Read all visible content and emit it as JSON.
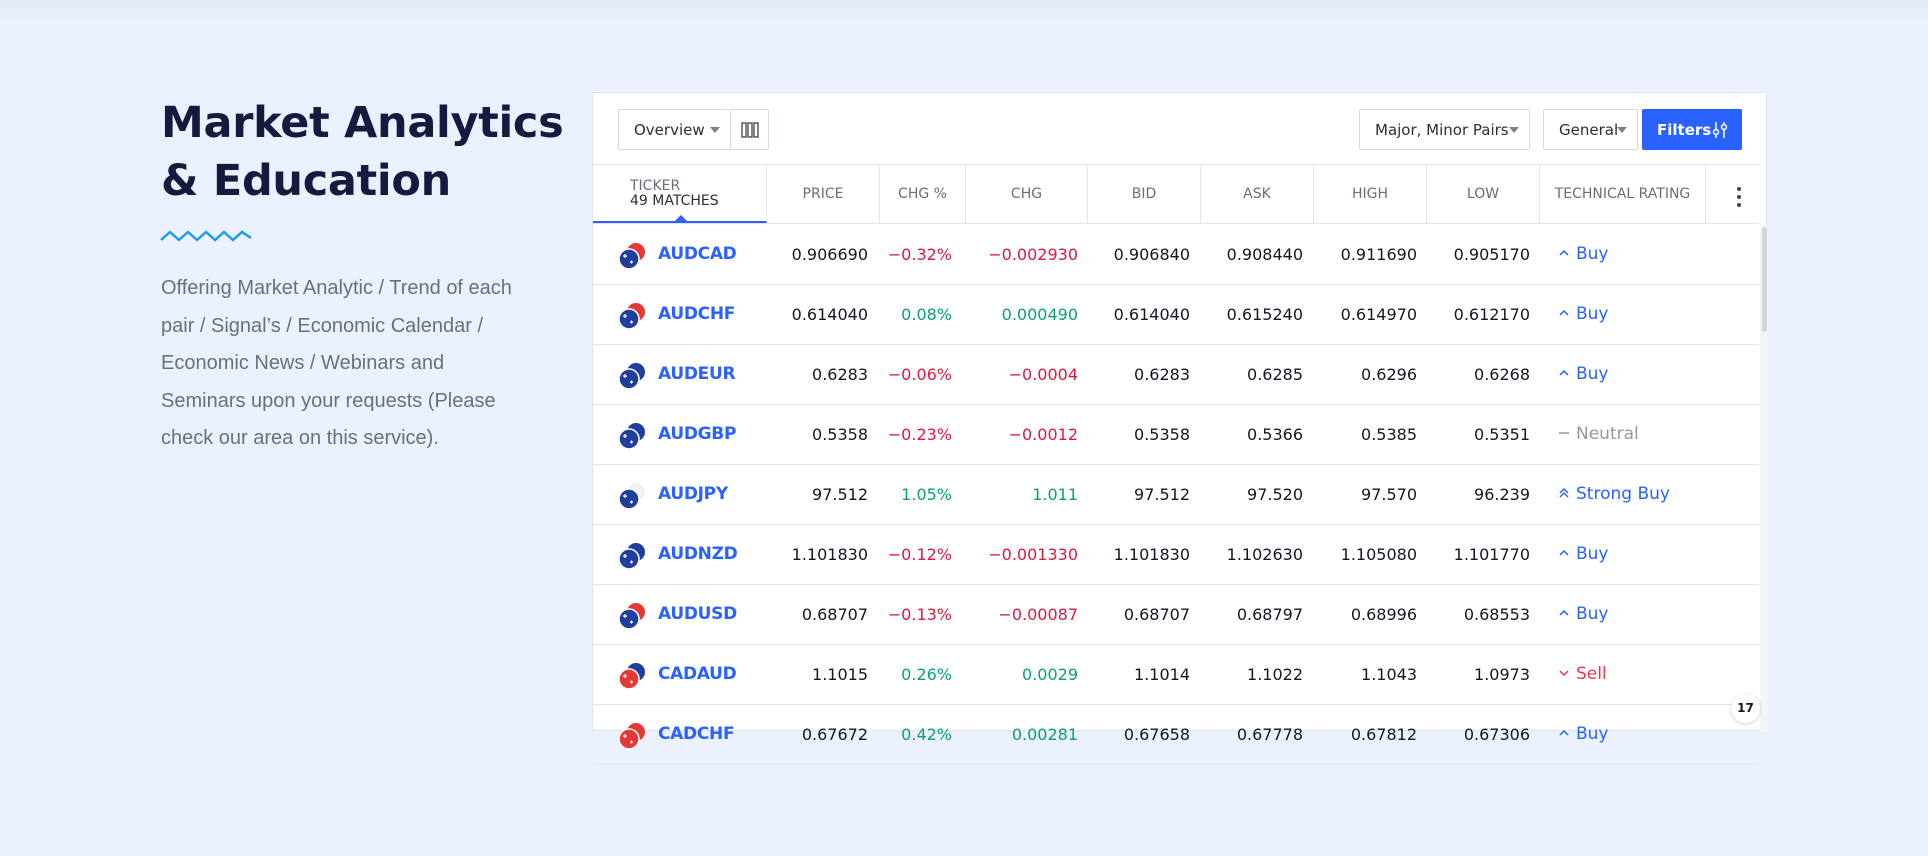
{
  "intro": {
    "title_line1": "Market Analytics",
    "title_line2": "& Education",
    "description": "Offering Market Analytic / Trend of each pair / Signal’s / Economic Calendar / Economic News / Webinars and Seminars upon your requests (Please check our area on this service)."
  },
  "toolbar": {
    "view_label": "Overview",
    "pairs_label": "Major, Minor Pairs",
    "category_label": "General",
    "filters_label": "Filters"
  },
  "columns": {
    "ticker": "TICKER",
    "matches": "49 MATCHES",
    "price": "PRICE",
    "chg_pct": "CHG %",
    "chg": "CHG",
    "bid": "BID",
    "ask": "ASK",
    "high": "HIGH",
    "low": "LOW",
    "rating": "TECHNICAL RATING"
  },
  "rows": [
    {
      "symbol": "AUDCAD",
      "flag_colors": [
        "#1f3f9b",
        "#e53935"
      ],
      "price": "0.906690",
      "chg_pct": "−0.32%",
      "chg": "−0.002930",
      "dir": "neg",
      "bid": "0.906840",
      "ask": "0.908440",
      "high": "0.911690",
      "low": "0.905170",
      "rating": "Buy",
      "rating_kind": "buy"
    },
    {
      "symbol": "AUDCHF",
      "flag_colors": [
        "#1f3f9b",
        "#e53935"
      ],
      "price": "0.614040",
      "chg_pct": "0.08%",
      "chg": "0.000490",
      "dir": "pos",
      "bid": "0.614040",
      "ask": "0.615240",
      "high": "0.614970",
      "low": "0.612170",
      "rating": "Buy",
      "rating_kind": "buy"
    },
    {
      "symbol": "AUDEUR",
      "flag_colors": [
        "#1f3f9b",
        "#1f3f9b"
      ],
      "price": "0.6283",
      "chg_pct": "−0.06%",
      "chg": "−0.0004",
      "dir": "neg",
      "bid": "0.6283",
      "ask": "0.6285",
      "high": "0.6296",
      "low": "0.6268",
      "rating": "Buy",
      "rating_kind": "buy"
    },
    {
      "symbol": "AUDGBP",
      "flag_colors": [
        "#1f3f9b",
        "#1f3f9b"
      ],
      "price": "0.5358",
      "chg_pct": "−0.23%",
      "chg": "−0.0012",
      "dir": "neg",
      "bid": "0.5358",
      "ask": "0.5366",
      "high": "0.5385",
      "low": "0.5351",
      "rating": "Neutral",
      "rating_kind": "neutral"
    },
    {
      "symbol": "AUDJPY",
      "flag_colors": [
        "#1f3f9b",
        "#f2f2f2"
      ],
      "price": "97.512",
      "chg_pct": "1.05%",
      "chg": "1.011",
      "dir": "pos",
      "bid": "97.512",
      "ask": "97.520",
      "high": "97.570",
      "low": "96.239",
      "rating": "Strong Buy",
      "rating_kind": "strong-buy"
    },
    {
      "symbol": "AUDNZD",
      "flag_colors": [
        "#1f3f9b",
        "#1f3f9b"
      ],
      "price": "1.101830",
      "chg_pct": "−0.12%",
      "chg": "−0.001330",
      "dir": "neg",
      "bid": "1.101830",
      "ask": "1.102630",
      "high": "1.105080",
      "low": "1.101770",
      "rating": "Buy",
      "rating_kind": "buy"
    },
    {
      "symbol": "AUDUSD",
      "flag_colors": [
        "#1f3f9b",
        "#e53935"
      ],
      "price": "0.68707",
      "chg_pct": "−0.13%",
      "chg": "−0.00087",
      "dir": "neg",
      "bid": "0.68707",
      "ask": "0.68797",
      "high": "0.68996",
      "low": "0.68553",
      "rating": "Buy",
      "rating_kind": "buy"
    },
    {
      "symbol": "CADAUD",
      "flag_colors": [
        "#e53935",
        "#1f3f9b"
      ],
      "price": "1.1015",
      "chg_pct": "0.26%",
      "chg": "0.0029",
      "dir": "pos",
      "bid": "1.1014",
      "ask": "1.1022",
      "high": "1.1043",
      "low": "1.0973",
      "rating": "Sell",
      "rating_kind": "sell"
    },
    {
      "symbol": "CADCHF",
      "flag_colors": [
        "#e53935",
        "#e53935"
      ],
      "price": "0.67672",
      "chg_pct": "0.42%",
      "chg": "0.00281",
      "dir": "pos",
      "bid": "0.67658",
      "ask": "0.67778",
      "high": "0.67812",
      "low": "0.67306",
      "rating": "Buy",
      "rating_kind": "buy"
    }
  ],
  "widget_logo": "17",
  "colors": {
    "accent": "#2962ff",
    "negative": "#e0173e",
    "positive": "#089f79",
    "neutral": "#9598a1",
    "sell": "#f23645",
    "title": "#17193f"
  }
}
